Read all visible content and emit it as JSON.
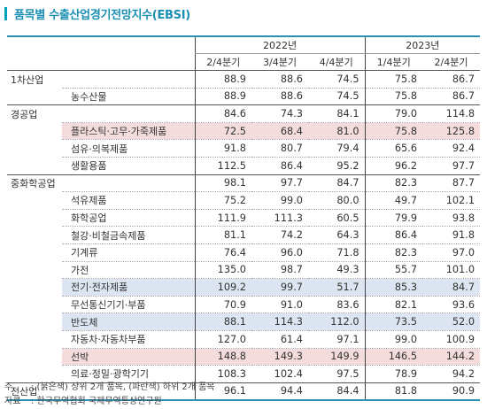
{
  "title": "품목별 수출산업경기전망지수(EBSI)",
  "header": {
    "years": [
      "2022년",
      "2023년"
    ],
    "quarters": [
      "2/4분기",
      "3/4분기",
      "4/4분기",
      "1/4분기",
      "2/4분기"
    ]
  },
  "rows": [
    {
      "cat": "1차산업",
      "item": "",
      "v": [
        "88.9",
        "88.6",
        "74.5",
        "75.8",
        "86.7"
      ],
      "hl": "",
      "top": true
    },
    {
      "cat": "",
      "item": "농수산물",
      "v": [
        "88.9",
        "88.6",
        "74.5",
        "75.8",
        "86.7"
      ],
      "hl": "",
      "top": false
    },
    {
      "cat": "경공업",
      "item": "",
      "v": [
        "84.6",
        "74.3",
        "84.1",
        "79.0",
        "114.8"
      ],
      "hl": "",
      "top": true
    },
    {
      "cat": "",
      "item": "플라스틱·고무·가죽제품",
      "v": [
        "72.5",
        "68.4",
        "81.0",
        "75.8",
        "125.8"
      ],
      "hl": "red",
      "top": false
    },
    {
      "cat": "",
      "item": "섬유·의복제품",
      "v": [
        "91.8",
        "80.7",
        "79.4",
        "65.6",
        "92.4"
      ],
      "hl": "",
      "top": false
    },
    {
      "cat": "",
      "item": "생활용품",
      "v": [
        "112.5",
        "86.4",
        "95.2",
        "96.2",
        "97.7"
      ],
      "hl": "",
      "top": false
    },
    {
      "cat": "중화학공업",
      "item": "",
      "v": [
        "98.1",
        "97.7",
        "84.7",
        "82.3",
        "87.7"
      ],
      "hl": "",
      "top": true
    },
    {
      "cat": "",
      "item": "석유제품",
      "v": [
        "75.2",
        "99.0",
        "80.0",
        "49.7",
        "102.1"
      ],
      "hl": "",
      "top": false
    },
    {
      "cat": "",
      "item": "화학공업",
      "v": [
        "111.9",
        "111.3",
        "60.5",
        "79.9",
        "93.8"
      ],
      "hl": "",
      "top": false
    },
    {
      "cat": "",
      "item": "철강·비철금속제품",
      "v": [
        "81.1",
        "74.2",
        "64.3",
        "86.4",
        "91.8"
      ],
      "hl": "",
      "top": false
    },
    {
      "cat": "",
      "item": "기계류",
      "v": [
        "76.4",
        "96.0",
        "71.8",
        "82.3",
        "97.0"
      ],
      "hl": "",
      "top": false
    },
    {
      "cat": "",
      "item": "가전",
      "v": [
        "135.0",
        "98.7",
        "49.3",
        "55.7",
        "101.0"
      ],
      "hl": "",
      "top": false
    },
    {
      "cat": "",
      "item": "전기·전자제품",
      "v": [
        "109.2",
        "99.7",
        "51.7",
        "85.3",
        "84.7"
      ],
      "hl": "blue",
      "top": false
    },
    {
      "cat": "",
      "item": "무선통신기기·부품",
      "v": [
        "70.9",
        "91.0",
        "83.6",
        "82.1",
        "93.6"
      ],
      "hl": "",
      "top": false
    },
    {
      "cat": "",
      "item": "반도체",
      "v": [
        "88.1",
        "114.3",
        "112.0",
        "73.5",
        "52.0"
      ],
      "hl": "blue",
      "top": false
    },
    {
      "cat": "",
      "item": "자동차·자동차부품",
      "v": [
        "127.0",
        "61.4",
        "97.1",
        "99.0",
        "100.9"
      ],
      "hl": "",
      "top": false
    },
    {
      "cat": "",
      "item": "선박",
      "v": [
        "148.8",
        "149.3",
        "149.9",
        "146.5",
        "144.2"
      ],
      "hl": "red",
      "top": false
    },
    {
      "cat": "",
      "item": "의료·정밀·광학기기",
      "v": [
        "108.3",
        "102.4",
        "97.5",
        "78.9",
        "94.2"
      ],
      "hl": "",
      "top": false
    },
    {
      "cat": "전산업",
      "item": "",
      "v": [
        "96.1",
        "94.4",
        "84.4",
        "81.8",
        "90.9"
      ],
      "hl": "",
      "top": true
    }
  ],
  "notes": [
    {
      "label": "주",
      "text": ": (붉은색) 상위 2개 품목, (파란색) 하위 2개 품목"
    },
    {
      "label": "자료",
      "text": ": 한국무역협회 국제무역통상연구원"
    }
  ]
}
